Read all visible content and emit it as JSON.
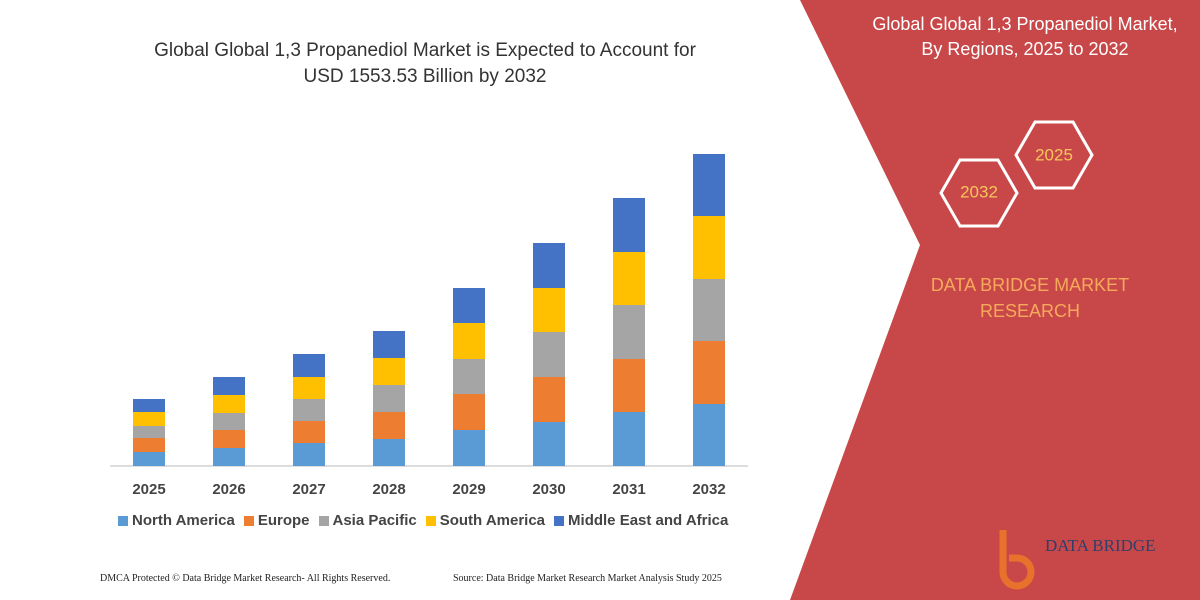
{
  "chart_data": {
    "type": "stacked-bar",
    "title": "Global Global 1,3 Propanediol Market is Expected to Account for USD 1553.53 Billion by 2032",
    "categories": [
      "2025",
      "2026",
      "2027",
      "2028",
      "2029",
      "2030",
      "2031",
      "2032"
    ],
    "series": [
      {
        "name": "North America",
        "color": "#5b9bd5",
        "values": [
          14,
          18,
          23,
          27,
          36,
          44,
          54,
          62
        ]
      },
      {
        "name": "Europe",
        "color": "#ed7d31",
        "values": [
          14,
          18,
          22,
          27,
          36,
          45,
          53,
          63
        ]
      },
      {
        "name": "Asia Pacific",
        "color": "#a5a5a5",
        "values": [
          12,
          17,
          22,
          27,
          35,
          45,
          54,
          62
        ]
      },
      {
        "name": "South America",
        "color": "#ffc000",
        "values": [
          14,
          18,
          22,
          27,
          36,
          44,
          53,
          63
        ]
      },
      {
        "name": "Middle East and Africa",
        "color": "#4472c4",
        "values": [
          13,
          18,
          23,
          27,
          35,
          45,
          54,
          62
        ]
      }
    ],
    "ylim": [
      0,
      312
    ],
    "legend": "bottom"
  },
  "panel": {
    "title": "Global Global 1,3 Propanediol Market, By Regions, 2025 to 2032",
    "hexagons": [
      "2025",
      "2032"
    ],
    "brand": "DATA BRIDGE MARKET RESEARCH"
  },
  "footer": {
    "left": "DMCA Protected © Data Bridge Market Research- All Rights Reserved.",
    "right": "Source: Data Bridge Market Research Market Analysis Study 2025"
  },
  "logo": "DATA BRIDGE"
}
